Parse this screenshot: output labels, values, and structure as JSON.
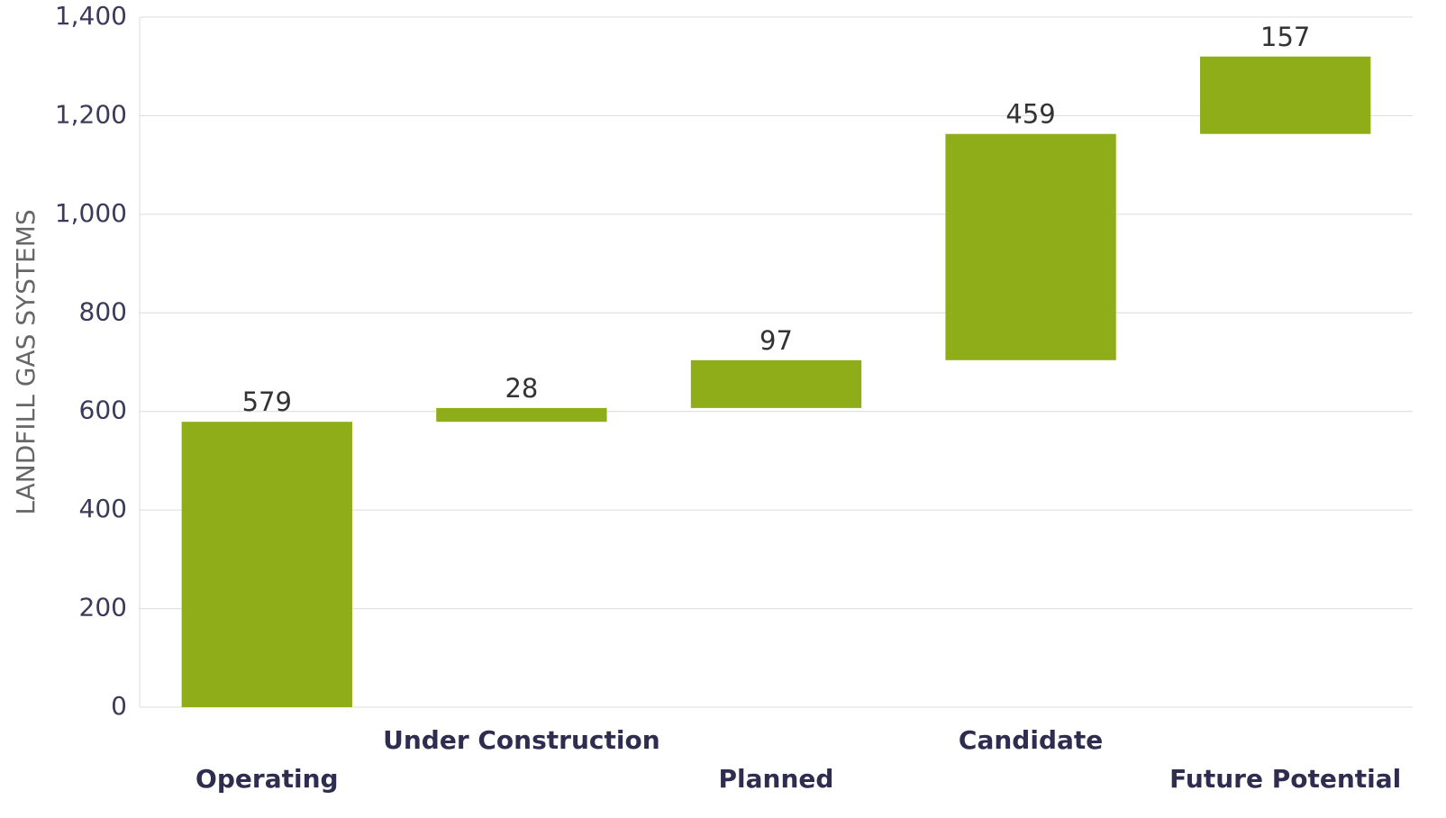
{
  "chart_data": {
    "type": "waterfall",
    "y_label": "LANDFILL GAS SYSTEMS",
    "categories": [
      "Operating",
      "Under Construction",
      "Planned",
      "Candidate",
      "Future Potential"
    ],
    "values": [
      579,
      28,
      97,
      459,
      157
    ],
    "color": "#8fad19",
    "ylim": [
      0,
      1400
    ],
    "yticks": [
      0,
      200,
      400,
      600,
      800,
      {
        "value": 1000,
        "label": "1,000"
      },
      {
        "value": 1200,
        "label": "1,200"
      },
      {
        "value": 1400,
        "label": "1,400"
      }
    ],
    "grid": true
  }
}
